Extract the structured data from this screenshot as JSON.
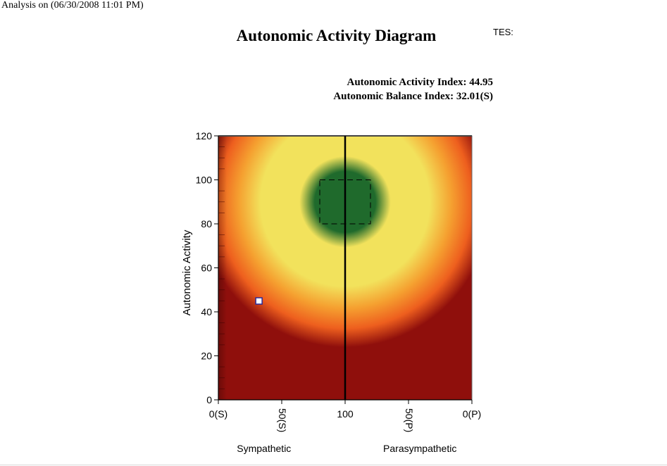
{
  "header": {
    "analysis_text": "Analysis on (06/30/2008 11:01 PM)",
    "notes_label": "TES:"
  },
  "chart_data": {
    "type": "heatmap",
    "title": "Autonomic Activity Diagram",
    "annotations": {
      "activity_index": "Autonomic Activity Index: 44.95",
      "balance_index": "Autonomic Balance Index: 32.01(S)"
    },
    "ylabel": "Autonomic Activity",
    "ylim": [
      0,
      120
    ],
    "yticks": [
      0,
      20,
      40,
      60,
      80,
      100,
      120
    ],
    "xlim": [
      0,
      200
    ],
    "xticks": [
      {
        "value": 0,
        "label": "0(S)",
        "rotated": false
      },
      {
        "value": 50,
        "label": "50(S)",
        "rotated": true
      },
      {
        "value": 100,
        "label": "100",
        "rotated": false
      },
      {
        "value": 150,
        "label": "50(P)",
        "rotated": true
      },
      {
        "value": 200,
        "label": "0(P)",
        "rotated": false
      }
    ],
    "region_labels": {
      "left": "Sympathetic",
      "right": "Parasympathetic"
    },
    "center_line_x": 100,
    "target_box": {
      "x0": 80,
      "x1": 120,
      "y0": 80,
      "y1": 100
    },
    "point": {
      "x": 32.01,
      "y": 44.95
    },
    "heat_center": {
      "x": 100,
      "y": 90
    },
    "colors": {
      "core": "#1f6a2c",
      "inner": "#f2e25c",
      "mid": "#f5a030",
      "outer": "#ee5f1e",
      "background": "#8f0f0c"
    }
  }
}
